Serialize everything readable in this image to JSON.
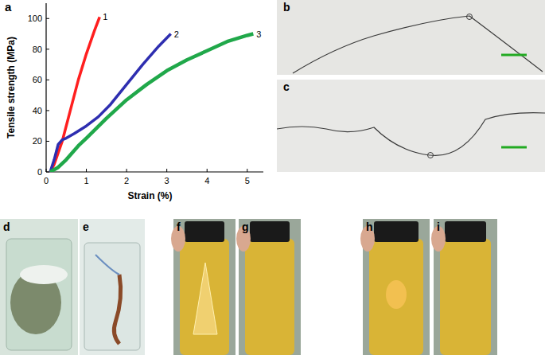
{
  "chart_data": {
    "type": "line",
    "panel_label": "a",
    "x_label": "Strain (%)",
    "y_label": "Tensile strength (MPa)",
    "xlim": [
      0,
      5.4
    ],
    "xticks": [
      0,
      1,
      2,
      3,
      4,
      5
    ],
    "ylim": [
      0,
      110
    ],
    "yticks": [
      0,
      20,
      40,
      60,
      80,
      100
    ],
    "grid": false,
    "series": [
      {
        "name": "1",
        "color": "#ff1f1f",
        "x": [
          0.1,
          0.2,
          0.4,
          0.6,
          0.8,
          1.0,
          1.2,
          1.33
        ],
        "values": [
          0,
          5,
          20,
          40,
          60,
          77,
          92,
          101
        ]
      },
      {
        "name": "2",
        "color": "#2e2eb0",
        "x": [
          0.1,
          0.2,
          0.3,
          0.4,
          0.5,
          0.7,
          1.0,
          1.3,
          1.6,
          2.0,
          2.4,
          2.8,
          3.1
        ],
        "values": [
          0,
          8,
          18,
          21,
          22,
          25,
          30,
          36,
          44,
          57,
          70,
          82,
          90
        ]
      },
      {
        "name": "3",
        "color": "#20a84a",
        "x": [
          0.1,
          0.3,
          0.5,
          0.8,
          1.0,
          1.5,
          2.0,
          2.5,
          3.0,
          3.5,
          4.0,
          4.5,
          5.0,
          5.15
        ],
        "values": [
          0,
          3,
          8,
          17,
          22,
          35,
          47,
          57,
          66,
          73,
          79,
          85,
          89,
          90
        ]
      }
    ]
  },
  "figure": {
    "panels": [
      "b",
      "c",
      "d",
      "e",
      "f",
      "g",
      "h",
      "i"
    ]
  }
}
